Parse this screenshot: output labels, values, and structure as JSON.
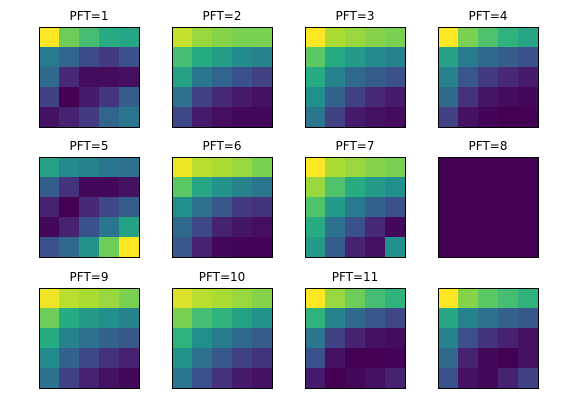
{
  "figure": {
    "panels": [
      {
        "title": "PFT=1"
      },
      {
        "title": "PFT=2"
      },
      {
        "title": "PFT=3"
      },
      {
        "title": "PFT=4"
      },
      {
        "title": "PFT=5"
      },
      {
        "title": "PFT=6"
      },
      {
        "title": "PFT=7"
      },
      {
        "title": "PFT=8"
      },
      {
        "title": "PFT=9"
      },
      {
        "title": "PFT=10"
      },
      {
        "title": "PFT=11"
      },
      {
        "title": ""
      }
    ]
  },
  "chart_data": {
    "type": "heatmap",
    "colormap": "viridis",
    "value_range": [
      0,
      1
    ],
    "axes_ticks": "none",
    "layout": "3 rows x 4 columns of 5x5 heatmaps",
    "heatmaps": [
      {
        "title": "PFT=1",
        "values": [
          [
            1.0,
            0.78,
            0.7,
            0.62,
            0.6
          ],
          [
            0.42,
            0.33,
            0.23,
            0.18,
            0.25
          ],
          [
            0.35,
            0.12,
            0.03,
            0.03,
            0.04
          ],
          [
            0.2,
            0.0,
            0.08,
            0.16,
            0.3
          ],
          [
            0.05,
            0.1,
            0.18,
            0.33,
            0.4
          ]
        ]
      },
      {
        "title": "PFT=2",
        "values": [
          [
            0.92,
            0.85,
            0.82,
            0.8,
            0.8
          ],
          [
            0.7,
            0.62,
            0.56,
            0.48,
            0.45
          ],
          [
            0.58,
            0.4,
            0.33,
            0.25,
            0.2
          ],
          [
            0.38,
            0.2,
            0.12,
            0.08,
            0.05
          ],
          [
            0.22,
            0.08,
            0.04,
            0.02,
            0.02
          ]
        ]
      },
      {
        "title": "PFT=3",
        "values": [
          [
            1.0,
            0.88,
            0.85,
            0.82,
            0.8
          ],
          [
            0.75,
            0.62,
            0.55,
            0.48,
            0.45
          ],
          [
            0.62,
            0.45,
            0.35,
            0.3,
            0.25
          ],
          [
            0.5,
            0.32,
            0.2,
            0.12,
            0.08
          ],
          [
            0.4,
            0.2,
            0.08,
            0.05,
            0.03
          ]
        ]
      },
      {
        "title": "PFT=4",
        "values": [
          [
            1.0,
            0.8,
            0.72,
            0.65,
            0.6
          ],
          [
            0.58,
            0.42,
            0.35,
            0.3,
            0.25
          ],
          [
            0.45,
            0.28,
            0.18,
            0.12,
            0.08
          ],
          [
            0.35,
            0.15,
            0.06,
            0.03,
            0.02
          ],
          [
            0.2,
            0.05,
            0.01,
            0.0,
            0.0
          ]
        ]
      },
      {
        "title": "PFT=5",
        "values": [
          [
            0.58,
            0.48,
            0.45,
            0.4,
            0.38
          ],
          [
            0.3,
            0.15,
            0.02,
            0.02,
            0.05
          ],
          [
            0.1,
            0.0,
            0.12,
            0.22,
            0.3
          ],
          [
            0.02,
            0.1,
            0.25,
            0.4,
            0.58
          ],
          [
            0.25,
            0.35,
            0.52,
            0.78,
            1.0
          ]
        ]
      },
      {
        "title": "PFT=6",
        "values": [
          [
            0.98,
            0.9,
            0.88,
            0.85,
            0.8
          ],
          [
            0.75,
            0.6,
            0.52,
            0.45,
            0.4
          ],
          [
            0.5,
            0.38,
            0.28,
            0.18,
            0.15
          ],
          [
            0.35,
            0.22,
            0.1,
            0.06,
            0.04
          ],
          [
            0.28,
            0.1,
            0.02,
            0.01,
            0.01
          ]
        ]
      },
      {
        "title": "PFT=7",
        "values": [
          [
            1.0,
            0.88,
            0.85,
            0.82,
            0.8
          ],
          [
            0.85,
            0.72,
            0.62,
            0.55,
            0.5
          ],
          [
            0.72,
            0.55,
            0.42,
            0.32,
            0.25
          ],
          [
            0.62,
            0.38,
            0.25,
            0.12,
            0.02
          ],
          [
            0.55,
            0.3,
            0.1,
            0.05,
            0.5
          ]
        ]
      },
      {
        "title": "PFT=8",
        "values": [
          [
            0.0,
            0.0,
            0.0,
            0.0,
            0.0
          ],
          [
            0.0,
            0.0,
            0.0,
            0.0,
            0.0
          ],
          [
            0.0,
            0.0,
            0.0,
            0.0,
            0.0
          ],
          [
            0.0,
            0.0,
            0.0,
            0.0,
            0.0
          ],
          [
            0.0,
            0.0,
            0.0,
            0.0,
            0.0
          ]
        ]
      },
      {
        "title": "PFT=9",
        "values": [
          [
            0.98,
            0.9,
            0.88,
            0.85,
            0.8
          ],
          [
            0.78,
            0.62,
            0.55,
            0.5,
            0.45
          ],
          [
            0.62,
            0.45,
            0.38,
            0.32,
            0.28
          ],
          [
            0.48,
            0.32,
            0.22,
            0.15,
            0.1
          ],
          [
            0.38,
            0.2,
            0.1,
            0.05,
            0.02
          ]
        ]
      },
      {
        "title": "PFT=10",
        "values": [
          [
            0.95,
            0.9,
            0.88,
            0.85,
            0.82
          ],
          [
            0.8,
            0.7,
            0.65,
            0.58,
            0.52
          ],
          [
            0.65,
            0.5,
            0.42,
            0.35,
            0.3
          ],
          [
            0.52,
            0.38,
            0.28,
            0.2,
            0.15
          ],
          [
            0.4,
            0.25,
            0.15,
            0.08,
            0.05
          ]
        ]
      },
      {
        "title": "PFT=11",
        "values": [
          [
            1.0,
            0.85,
            0.78,
            0.7,
            0.65
          ],
          [
            0.65,
            0.45,
            0.35,
            0.28,
            0.22
          ],
          [
            0.4,
            0.2,
            0.1,
            0.05,
            0.03
          ],
          [
            0.25,
            0.05,
            0.0,
            0.0,
            0.01
          ],
          [
            0.08,
            0.0,
            0.02,
            0.05,
            0.1
          ]
        ]
      },
      {
        "title": "",
        "values": [
          [
            1.0,
            0.82,
            0.75,
            0.7,
            0.65
          ],
          [
            0.6,
            0.45,
            0.38,
            0.32,
            0.28
          ],
          [
            0.45,
            0.25,
            0.15,
            0.1,
            0.05
          ],
          [
            0.35,
            0.1,
            0.02,
            0.0,
            0.05
          ],
          [
            0.25,
            0.05,
            0.02,
            0.1,
            0.2
          ]
        ]
      }
    ]
  }
}
